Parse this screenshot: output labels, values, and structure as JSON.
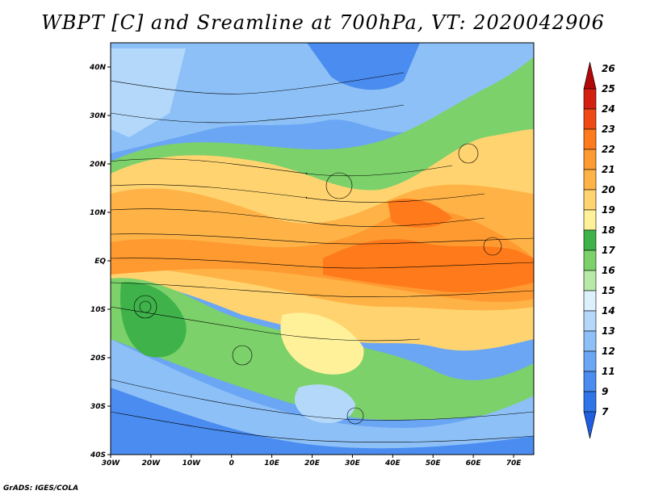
{
  "title": "WBPT [C] and Sreamline at 700hPa, VT: 2020042906",
  "credit": "GrADS: IGES/COLA",
  "map": {
    "lon_range": [
      -30,
      75
    ],
    "lat_range": [
      -40,
      45
    ],
    "lat_ticks": [
      {
        "value": 40,
        "label": "40N"
      },
      {
        "value": 30,
        "label": "30N"
      },
      {
        "value": 20,
        "label": "20N"
      },
      {
        "value": 10,
        "label": "10N"
      },
      {
        "value": 0,
        "label": "EQ"
      },
      {
        "value": -10,
        "label": "10S"
      },
      {
        "value": -20,
        "label": "20S"
      },
      {
        "value": -30,
        "label": "30S"
      },
      {
        "value": -40,
        "label": "40S"
      }
    ],
    "lon_ticks": [
      {
        "value": -30,
        "label": "30W"
      },
      {
        "value": -20,
        "label": "20W"
      },
      {
        "value": -10,
        "label": "10W"
      },
      {
        "value": 0,
        "label": "0"
      },
      {
        "value": 10,
        "label": "10E"
      },
      {
        "value": 20,
        "label": "20E"
      },
      {
        "value": 30,
        "label": "30E"
      },
      {
        "value": 40,
        "label": "40E"
      },
      {
        "value": 50,
        "label": "50E"
      },
      {
        "value": 60,
        "label": "60E"
      },
      {
        "value": 70,
        "label": "70E"
      }
    ]
  },
  "colorbar": {
    "levels": [
      "7",
      "9",
      "11",
      "12",
      "13",
      "14",
      "15",
      "16",
      "17",
      "18",
      "19",
      "20",
      "21",
      "22",
      "23",
      "24",
      "25",
      "26"
    ],
    "colors": [
      "#1f5ee0",
      "#2f74e8",
      "#4a8cef",
      "#6aa6f4",
      "#8dc0f7",
      "#b4d8fa",
      "#dcf1fc",
      "#b6eaa6",
      "#7cd16a",
      "#3fb24a",
      "#fff19a",
      "#ffd470",
      "#ffb347",
      "#ff9a30",
      "#ff7a1a",
      "#ef4a14",
      "#d42010",
      "#b00808"
    ]
  }
}
